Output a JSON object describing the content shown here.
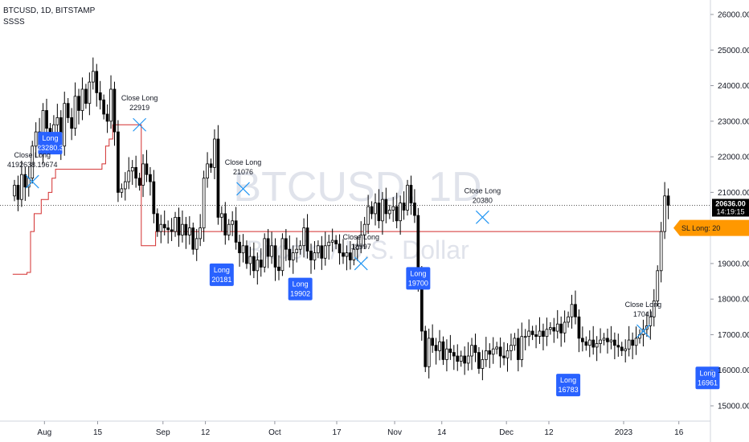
{
  "header": {
    "symbol": "BTCUSD, 1D, BITSTAMP",
    "indicator": "SSSS"
  },
  "colors": {
    "up": "#ffffff",
    "down": "#000000",
    "wick": "#000000",
    "stop": "#d32f2f",
    "long": "#2962ff",
    "close": "#2196f3",
    "sl": "#ff9800",
    "price_bg": "#000000"
  },
  "chart_data": {
    "type": "candlestick",
    "watermark": "BTCUSD, 1D",
    "watermark_sub": "Bitcoin / U.S. Dollar",
    "ylim": [
      14500,
      26400
    ],
    "y_ticks": [
      "15000.00",
      "16000.00",
      "17000.00",
      "18000.00",
      "19000.00",
      "20000.00",
      "21000.00",
      "22000.00",
      "23000.00",
      "24000.00",
      "25000.00",
      "26000.00"
    ],
    "x_ticks": [
      "Aug",
      "15",
      "Sep",
      "12",
      "Oct",
      "17",
      "Nov",
      "14",
      "Dec",
      "12",
      "2023",
      "16"
    ],
    "last_price": "20636.00",
    "countdown": "14:19:15",
    "sl_label": "SL Long: 20",
    "closes": [
      21200,
      20800,
      21500,
      21150,
      21400,
      22300,
      22700,
      22200,
      23300,
      22800,
      22500,
      22900,
      23100,
      22300,
      23500,
      23100,
      22800,
      23700,
      23300,
      23900,
      23500,
      24100,
      24400,
      23800,
      23600,
      23200,
      23000,
      23900,
      22700,
      21000,
      21100,
      21300,
      21600,
      21700,
      21400,
      21200,
      21800,
      21500,
      21300,
      20400,
      19900,
      20100,
      20000,
      19950,
      19900,
      20300,
      19800,
      20100,
      19800,
      20000,
      19400,
      19700,
      20000,
      21400,
      21800,
      21700,
      22500,
      20300,
      20400,
      19800,
      20100,
      20200,
      19600,
      19300,
      19500,
      19000,
      19200,
      18800,
      19100,
      18900,
      19700,
      19200,
      19500,
      18900,
      18800,
      19700,
      19400,
      19100,
      19300,
      19400,
      19500,
      20000,
      19350,
      19100,
      19300,
      19500,
      19150,
      19500,
      19600,
      19650,
      19550,
      19300,
      19200,
      19300,
      19100,
      19400,
      19500,
      19800,
      20100,
      20600,
      20400,
      20700,
      20200,
      20800,
      20400,
      20500,
      20600,
      20200,
      20700,
      20500,
      21200,
      20700,
      20350,
      18600,
      17100,
      16100,
      16900,
      16700,
      16550,
      16800,
      16300,
      16600,
      16500,
      16400,
      16250,
      16400,
      16200,
      16400,
      16700,
      16500,
      16050,
      16300,
      16550,
      16450,
      16600,
      16650,
      16400,
      16350,
      16550,
      16700,
      16900,
      16300,
      16950,
      16950,
      17100,
      17000,
      16950,
      17100,
      16950,
      17150,
      17200,
      17100,
      17300,
      17050,
      17350,
      17500,
      17850,
      17500,
      16900,
      16800,
      16700,
      16850,
      16650,
      16750,
      16850,
      16900,
      16800,
      16850,
      16700,
      16650,
      16550,
      16600,
      16850,
      16700,
      16900,
      17000,
      17150,
      17250,
      17500,
      17950,
      18800,
      19900,
      20900,
      20636
    ],
    "stop_line": [
      18700,
      18700,
      18700,
      18700,
      18750,
      19900,
      20400,
      20400,
      20800,
      20800,
      21000,
      21400,
      21650,
      21650,
      21650,
      21650,
      21650,
      21650,
      21650,
      21650,
      21650,
      21650,
      21650,
      21650,
      21650,
      21800,
      22300,
      22500,
      22900,
      22900,
      22900,
      22900,
      22900,
      22900,
      22900,
      22900,
      19500,
      19500,
      19500,
      19500,
      19900,
      19900,
      19900,
      19900,
      19900,
      19900,
      19900,
      19900,
      19900,
      19900,
      19900,
      19900,
      19900,
      19900,
      19900,
      19900,
      19900,
      19900,
      19900,
      19900,
      19900,
      19900,
      19900,
      19900,
      19900,
      19900,
      19900,
      19900,
      19900,
      19900,
      19900,
      19900,
      19900,
      19900,
      19900,
      19900,
      19900,
      19900,
      19900,
      19900,
      19900,
      19900,
      19900,
      19900,
      19900,
      19900,
      19900,
      19900,
      19900,
      19900,
      19900,
      19900,
      19900,
      19900,
      19900,
      19900,
      19900,
      19900,
      19900,
      19900,
      19900,
      19900,
      19900,
      19900,
      19900,
      19900,
      19900,
      19900,
      19900,
      19900,
      19900,
      19900,
      19900,
      19900,
      19900,
      19900,
      19900,
      19900,
      19900,
      19900,
      19900,
      19900,
      19900,
      19900,
      19900,
      19900,
      19900,
      19900,
      19900,
      19900,
      19900,
      19900,
      19900,
      19900,
      19900,
      19900,
      19900,
      19900,
      19900,
      19900,
      19900,
      19900,
      19900,
      19900,
      19900,
      19900,
      19900,
      19900,
      19900,
      19900,
      19900,
      19900,
      19900,
      19900,
      19900,
      19900,
      19900,
      19900,
      19900,
      19900,
      19900,
      19900,
      19900,
      19900,
      19900,
      19900,
      19900,
      19900,
      19900,
      19900,
      19900,
      19900,
      19900,
      19900,
      19900,
      19900,
      19900,
      19900,
      19900,
      19900,
      19900,
      19900
    ],
    "long_labels": [
      {
        "t": "Long",
        "v": "23280.3",
        "bar": 10,
        "price": 22700
      },
      {
        "t": "Long",
        "v": "20181",
        "bar": 58,
        "price": 19000
      },
      {
        "t": "Long",
        "v": "19902",
        "bar": 80,
        "price": 18600
      },
      {
        "t": "Long",
        "v": "19700",
        "bar": 113,
        "price": 18900
      },
      {
        "t": "Long",
        "v": "16783",
        "bar": 155,
        "price": 15900
      },
      {
        "t": "Long",
        "v": "16961",
        "bar": 194,
        "price": 16100
      }
    ],
    "close_labels": [
      {
        "t": "Close Long",
        "v": "19674",
        "pre": "4192638.",
        "bar": 5,
        "price": 21300
      },
      {
        "t": "Close Long",
        "v": "22919",
        "bar": 35,
        "price": 22900
      },
      {
        "t": "Close Long",
        "v": "21076",
        "bar": 64,
        "price": 21100
      },
      {
        "t": "Close Long",
        "v": "18997",
        "bar": 97,
        "price": 19000
      },
      {
        "t": "Close Long",
        "v": "20380",
        "bar": 131,
        "price": 20300
      },
      {
        "t": "Close Long",
        "v": "17041",
        "bar": 176,
        "price": 17100
      }
    ]
  }
}
